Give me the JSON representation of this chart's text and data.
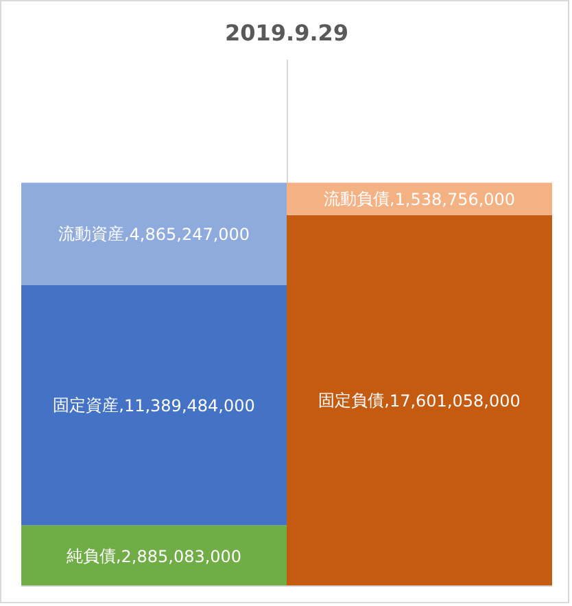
{
  "chart_data": {
    "type": "bar",
    "title": "2019.9.29",
    "stacked": true,
    "categories": [
      null,
      null
    ],
    "series": [
      {
        "name": "純負債,",
        "color": "#70ad47",
        "values": [
          2885083000,
          null
        ],
        "value_labels": [
          "2,885,083,000",
          null
        ]
      },
      {
        "name": "固定資産,",
        "color": "#4472c4",
        "values": [
          11389484000,
          null
        ],
        "value_labels": [
          "11,389,484,000",
          null
        ]
      },
      {
        "name": "流動資産,",
        "color": "#8faadc",
        "values": [
          4865247000,
          null
        ],
        "value_labels": [
          "4,865,247,000",
          null
        ]
      },
      {
        "name": "固定負債,",
        "color": "#c55a11",
        "values": [
          null,
          17601058000
        ],
        "value_labels": [
          null,
          "17,601,058,000"
        ]
      },
      {
        "name": "流動負債,",
        "color": "#f4b183",
        "values": [
          null,
          1538756000
        ],
        "value_labels": [
          null,
          "1,538,756,000"
        ]
      }
    ],
    "grid": "x",
    "tick_labels": false
  }
}
